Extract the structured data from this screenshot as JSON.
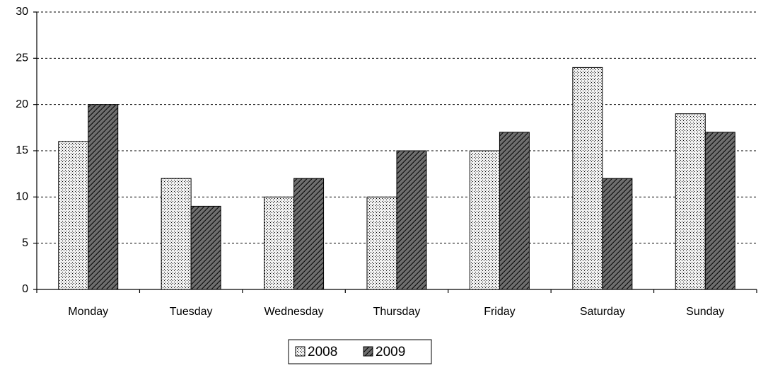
{
  "chart_data": {
    "type": "bar",
    "categories": [
      "Monday",
      "Tuesday",
      "Wednesday",
      "Thursday",
      "Friday",
      "Saturday",
      "Sunday"
    ],
    "series": [
      {
        "name": "2008",
        "color": "#f2f2f2",
        "values": [
          16,
          12,
          10,
          10,
          15,
          24,
          19
        ]
      },
      {
        "name": "2009",
        "color": "#6e6e6e",
        "values": [
          20,
          9,
          12,
          15,
          17,
          12,
          17
        ]
      }
    ],
    "ylim": [
      0,
      30
    ],
    "yticks": [
      0,
      5,
      10,
      15,
      20,
      25,
      30
    ],
    "grid": true,
    "legend": "bottom"
  }
}
